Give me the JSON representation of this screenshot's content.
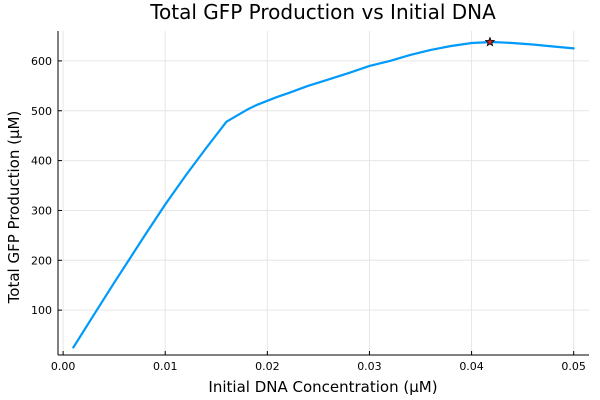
{
  "chart_data": {
    "type": "line",
    "title": "Total GFP Production vs Initial DNA",
    "xlabel": "Initial DNA Concentration (µM)",
    "ylabel": "Total GFP Production (µM)",
    "xlim": [
      -0.0005,
      0.0515
    ],
    "ylim": [
      10,
      660
    ],
    "xticks": [
      0.0,
      0.01,
      0.02,
      0.03,
      0.04,
      0.05
    ],
    "xtick_labels": [
      "0.00",
      "0.01",
      "0.02",
      "0.03",
      "0.04",
      "0.05"
    ],
    "yticks": [
      100,
      200,
      300,
      400,
      500,
      600
    ],
    "ytick_labels": [
      "100",
      "200",
      "300",
      "400",
      "500",
      "600"
    ],
    "grid": true,
    "series": [
      {
        "color": "#009AFA",
        "x": [
          0.001,
          0.003,
          0.005,
          0.008,
          0.01,
          0.012,
          0.014,
          0.016,
          0.018,
          0.019,
          0.02,
          0.021,
          0.022,
          0.024,
          0.026,
          0.028,
          0.03,
          0.032,
          0.034,
          0.036,
          0.038,
          0.04,
          0.042,
          0.044,
          0.046,
          0.048,
          0.05
        ],
        "y": [
          25,
          90,
          155,
          250,
          312,
          370,
          425,
          478,
          502,
          512,
          520,
          528,
          535,
          550,
          563,
          576,
          590,
          600,
          612,
          622,
          630,
          636,
          638,
          636,
          633,
          629,
          625
        ]
      }
    ],
    "marker": {
      "x": 0.0418,
      "y": 638,
      "symbol": "star",
      "color": "#D62828"
    }
  }
}
